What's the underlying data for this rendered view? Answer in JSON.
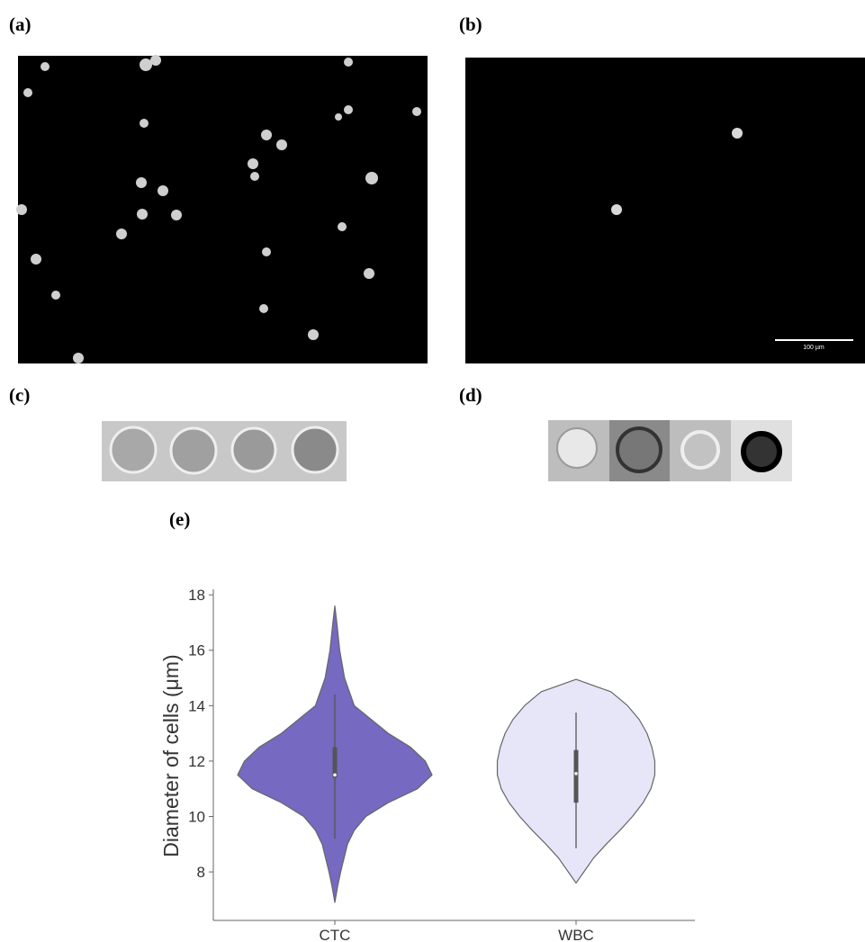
{
  "panels": {
    "a": "(a)",
    "b": "(b)",
    "c": "(c)",
    "d": "(d)",
    "e": "(e)"
  },
  "scale_bar": "100 µm",
  "chart_data": {
    "type": "violin",
    "ylabel": "Diameter of cells  (μm)",
    "categories": [
      "CTC",
      "WBC"
    ],
    "ylim": [
      6.25,
      18.2
    ],
    "yticks": [
      8,
      10,
      12,
      14,
      16,
      18
    ],
    "series": [
      {
        "name": "CTC",
        "color": "#7569c2",
        "whisker_low": 9.2,
        "q1": 11.4,
        "median": 11.5,
        "q3": 12.5,
        "whisker_high": 14.4,
        "density": {
          "y": [
            6.9,
            7.5,
            8,
            9,
            9.5,
            10,
            10.5,
            11,
            11.5,
            12,
            12.5,
            13,
            14,
            15,
            16,
            17,
            17.6
          ],
          "width": [
            0,
            0.03,
            0.06,
            0.13,
            0.2,
            0.32,
            0.55,
            0.85,
            1.0,
            0.93,
            0.78,
            0.55,
            0.2,
            0.1,
            0.05,
            0.02,
            0
          ]
        }
      },
      {
        "name": "WBC",
        "color": "#e6e6f8",
        "whisker_low": 8.85,
        "q1": 10.5,
        "median": 11.55,
        "q3": 12.4,
        "whisker_high": 13.75,
        "density": {
          "y": [
            7.6,
            8,
            8.5,
            9,
            9.5,
            10,
            10.5,
            11,
            11.5,
            12,
            12.5,
            13,
            13.5,
            14,
            14.5,
            14.95
          ],
          "width": [
            0,
            0.08,
            0.18,
            0.31,
            0.45,
            0.58,
            0.69,
            0.77,
            0.81,
            0.81,
            0.78,
            0.73,
            0.65,
            0.53,
            0.36,
            0
          ]
        }
      }
    ]
  }
}
